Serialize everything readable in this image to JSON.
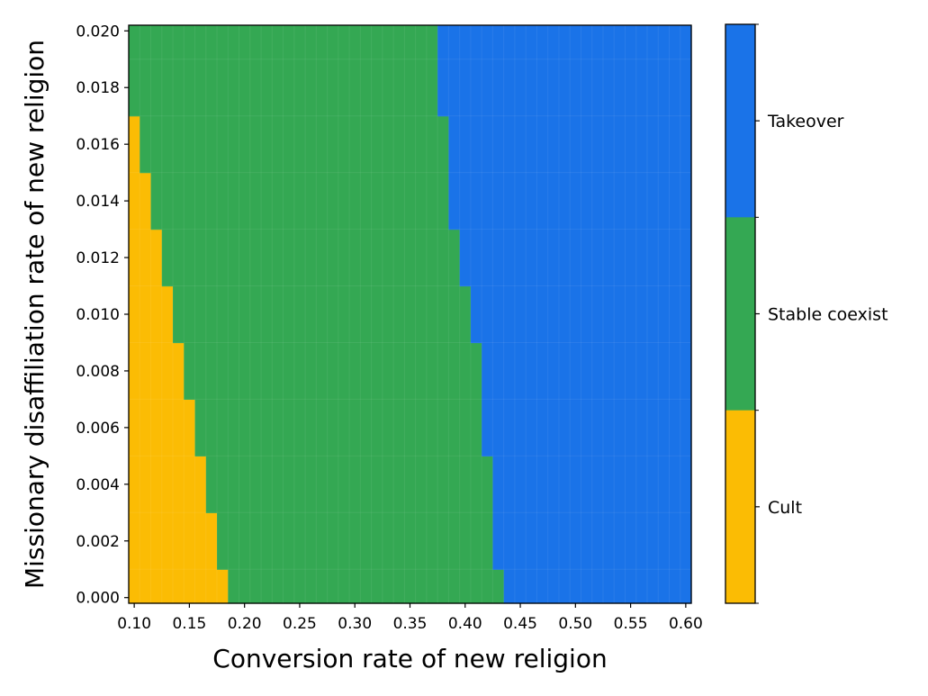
{
  "chart_data": {
    "type": "heatmap",
    "xlabel": "Conversion rate of new religion",
    "ylabel": "Missionary disaffiliation rate of new religion",
    "xlim": [
      0.095,
      0.605
    ],
    "ylim": [
      -0.0002,
      0.0202
    ],
    "x_ticks": [
      "0.10",
      "0.15",
      "0.20",
      "0.25",
      "0.30",
      "0.35",
      "0.40",
      "0.45",
      "0.50",
      "0.55",
      "0.60"
    ],
    "y_ticks": [
      "0.000",
      "0.002",
      "0.004",
      "0.006",
      "0.008",
      "0.010",
      "0.012",
      "0.014",
      "0.016",
      "0.018",
      "0.020"
    ],
    "categories": [
      "Cult",
      "Stable coexist",
      "Takeover"
    ],
    "colors": {
      "Cult": "#fbbc04",
      "Stable coexist": "#34a853",
      "Takeover": "#1a73e8"
    },
    "cell_width": 0.01,
    "cell_height": 0.002,
    "regions_by_row": [
      {
        "y_from": -0.0002,
        "y_to": 0.001,
        "cult_to": 0.185,
        "coexist_to": 0.435
      },
      {
        "y_from": 0.001,
        "y_to": 0.003,
        "cult_to": 0.175,
        "coexist_to": 0.425
      },
      {
        "y_from": 0.003,
        "y_to": 0.005,
        "cult_to": 0.165,
        "coexist_to": 0.425
      },
      {
        "y_from": 0.005,
        "y_to": 0.007,
        "cult_to": 0.155,
        "coexist_to": 0.415
      },
      {
        "y_from": 0.007,
        "y_to": 0.009,
        "cult_to": 0.145,
        "coexist_to": 0.415
      },
      {
        "y_from": 0.009,
        "y_to": 0.011,
        "cult_to": 0.135,
        "coexist_to": 0.405
      },
      {
        "y_from": 0.011,
        "y_to": 0.013,
        "cult_to": 0.125,
        "coexist_to": 0.395
      },
      {
        "y_from": 0.013,
        "y_to": 0.015,
        "cult_to": 0.115,
        "coexist_to": 0.385
      },
      {
        "y_from": 0.015,
        "y_to": 0.017,
        "cult_to": 0.105,
        "coexist_to": 0.385
      },
      {
        "y_from": 0.017,
        "y_to": 0.019,
        "cult_to": 0.095,
        "coexist_to": 0.375
      },
      {
        "y_from": 0.019,
        "y_to": 0.0202,
        "cult_to": 0.095,
        "coexist_to": 0.375
      }
    ],
    "colorbar": {
      "labels": [
        "Takeover",
        "Stable coexist",
        "Cult"
      ]
    },
    "grid": false,
    "legend": "colorbar-right"
  }
}
